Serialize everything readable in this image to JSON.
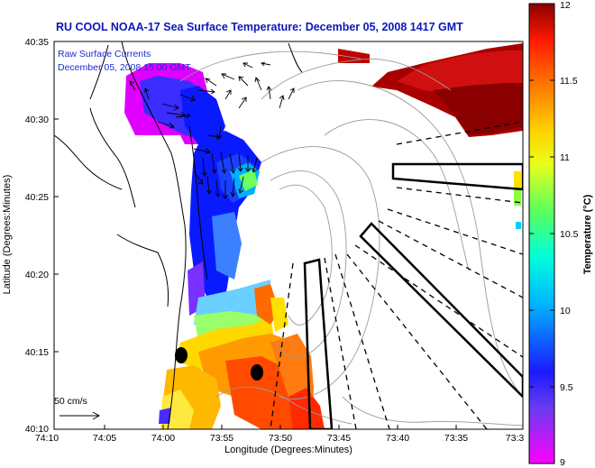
{
  "title": "RU COOL  NOAA-17  Sea Surface Temperature:  December 05, 2008 1417 GMT",
  "caption": {
    "line1": "Raw Surface Currents",
    "line2": "December 05, 2008 15:00 GMT"
  },
  "axes": {
    "xlabel": "Longitude (Degrees:Minutes)",
    "ylabel": "Latitude (Degrees:Minutes)",
    "xticks": [
      "74:10",
      "74:05",
      "74:00",
      "73:55",
      "73:50",
      "73:45",
      "73:40",
      "73:35",
      "73:3"
    ],
    "yticks": [
      "40:35",
      "40:30",
      "40:25",
      "40:20",
      "40:15",
      "40:10"
    ]
  },
  "colorbar": {
    "label": "Temperature (°C)",
    "ticks": [
      "12",
      "11.5",
      "11",
      "10.5",
      "10",
      "9.5",
      "9"
    ],
    "range": [
      9,
      12
    ]
  },
  "scale": {
    "label": "50 cm/s"
  },
  "colors": {
    "title": "#0b18b8",
    "caption": "#1a2bd0"
  }
}
